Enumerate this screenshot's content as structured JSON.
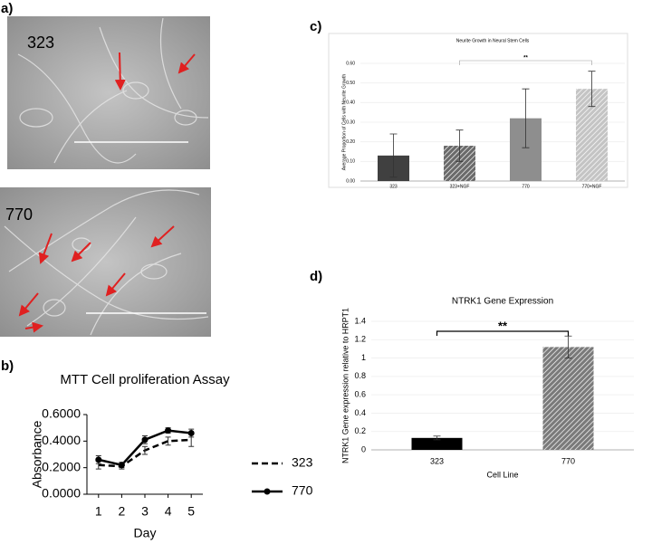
{
  "panel_labels": [
    "a)",
    "b)",
    "c)",
    "d)"
  ],
  "micrographs": [
    {
      "label": "323"
    },
    {
      "label": "770"
    }
  ],
  "chart_data": [
    {
      "type": "line",
      "title": "MTT Cell proliferation Assay",
      "x_label": "Day",
      "y_label": "Absorbance",
      "x": [
        1,
        2,
        3,
        4,
        5
      ],
      "xlim": [
        0.5,
        5.5
      ],
      "xticks": [
        1,
        2,
        3,
        4,
        5
      ],
      "ylim": [
        0,
        0.6
      ],
      "yticks": [
        {
          "value": 0,
          "label": "0.0000"
        },
        {
          "value": 0.2,
          "label": "0.2000"
        },
        {
          "value": 0.4,
          "label": "0.4000"
        },
        {
          "value": 0.6,
          "label": "0.6000"
        }
      ],
      "series": [
        {
          "name": "323",
          "color": "#000000",
          "dashed": true,
          "values": [
            0.22,
            0.21,
            0.33,
            0.4,
            0.41
          ],
          "errors": [
            0.03,
            0.02,
            0.03,
            0.03,
            0.05
          ]
        },
        {
          "name": "770",
          "color": "#000000",
          "dashed": false,
          "values": [
            0.26,
            0.22,
            0.41,
            0.48,
            0.46
          ],
          "errors": [
            0.03,
            0.02,
            0.03,
            0.02,
            0.03
          ]
        }
      ]
    },
    {
      "type": "bar",
      "title": "Neurite Growth in Neural Stem Cells",
      "y_label": "Average Proportion of Cells with Neurite Growth",
      "categories": [
        "323",
        "323+NGF",
        "770",
        "770+NGF"
      ],
      "values": [
        0.13,
        0.18,
        0.32,
        0.47
      ],
      "errors": [
        0.11,
        0.08,
        0.15,
        0.09
      ],
      "colors": [
        "#404040",
        "#6a6a6a",
        "#8e8e8e",
        "#c4c4c4"
      ],
      "hatch": [
        false,
        true,
        false,
        true
      ],
      "ylim": [
        0,
        0.6
      ],
      "yticks": [
        {
          "value": 0,
          "label": "0.00"
        },
        {
          "value": 0.1,
          "label": "0.10"
        },
        {
          "value": 0.2,
          "label": "0.20"
        },
        {
          "value": 0.3,
          "label": "0.30"
        },
        {
          "value": 0.4,
          "label": "0.40"
        },
        {
          "value": 0.5,
          "label": "0.50"
        },
        {
          "value": 0.6,
          "label": "0.60"
        }
      ],
      "annotation": "**"
    },
    {
      "type": "bar",
      "title": "NTRK1 Gene Expression",
      "x_label": "Cell Line",
      "y_label": "NTRK1 Gene expression relative to HRPT1",
      "categories": [
        "323",
        "770"
      ],
      "values": [
        0.13,
        1.12
      ],
      "errors": [
        0.02,
        0.12
      ],
      "colors": [
        "#000000",
        "#7a7a7a"
      ],
      "hatch": [
        false,
        true
      ],
      "ylim": [
        0,
        1.4
      ],
      "yticks": [
        0,
        0.2,
        0.4,
        0.6,
        0.8,
        1,
        1.2,
        1.4
      ],
      "annotation": "**"
    }
  ]
}
